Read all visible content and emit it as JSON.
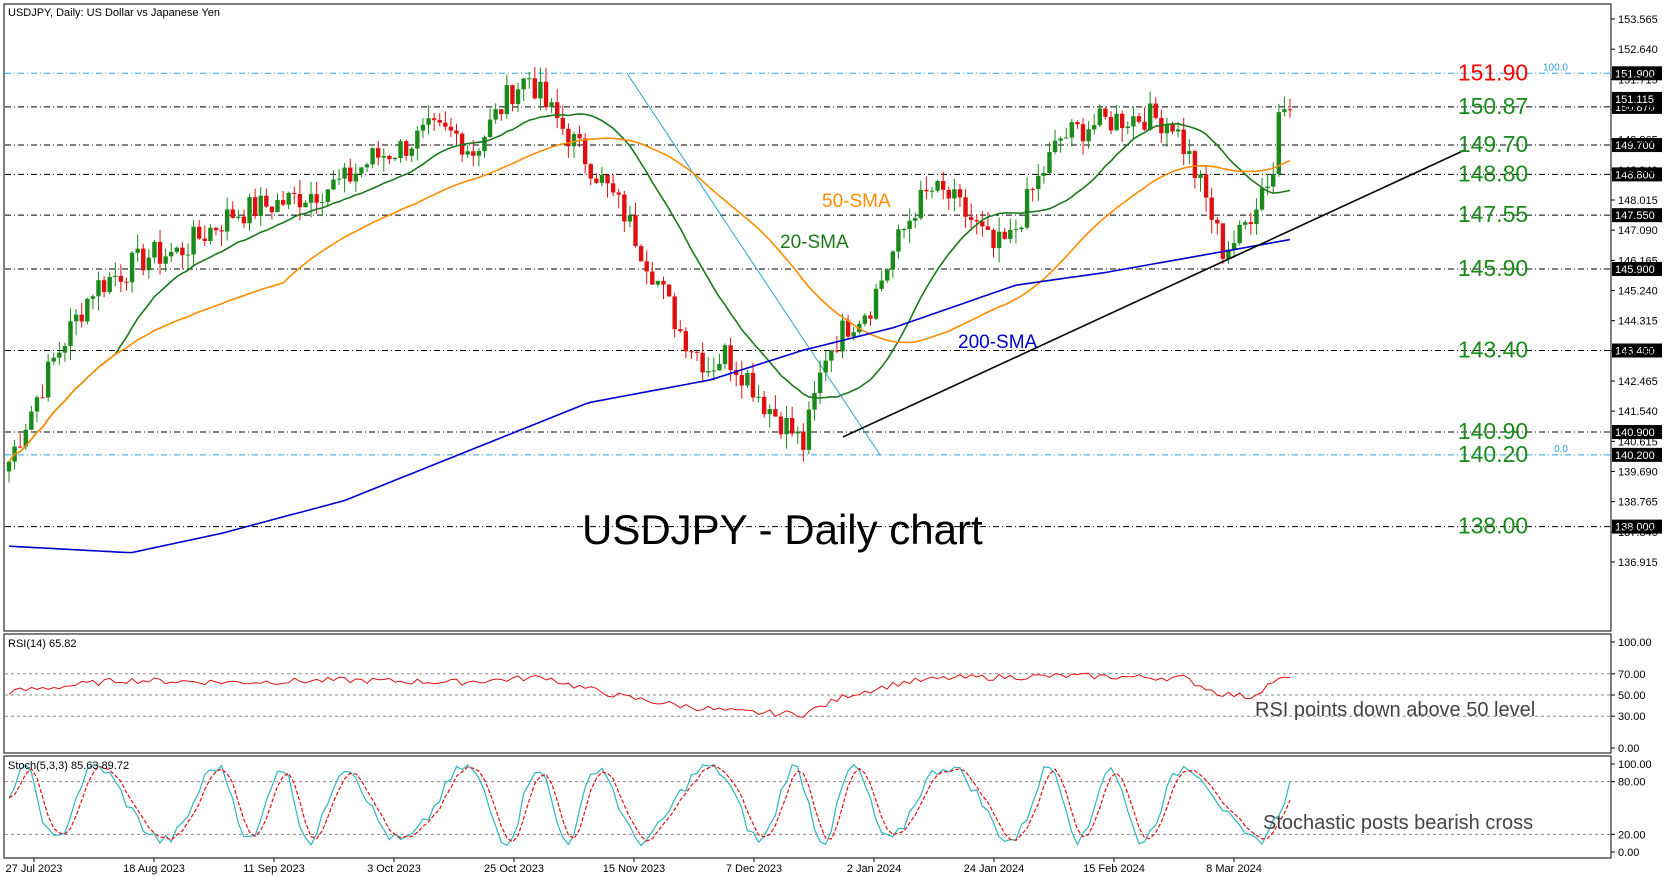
{
  "chart_data": {
    "type": "candlestick",
    "title": "USDJPY, Daily:  US Dollar vs Japanese Yen",
    "caption": "USDJPY - Daily chart",
    "price_axis": {
      "ticks": [
        "153.565",
        "152.640",
        "151.715",
        "150.790",
        "149.865",
        "148.940",
        "148.015",
        "147.090",
        "146.165",
        "145.240",
        "144.315",
        "143.390",
        "142.465",
        "141.540",
        "140.615",
        "139.690",
        "138.765",
        "137.840",
        "136.915"
      ],
      "ylim": [
        136.0,
        154.2
      ]
    },
    "date_labels": [
      "27 Jul 2023",
      "18 Aug 2023",
      "11 Sep 2023",
      "3 Oct 2023",
      "25 Oct 2023",
      "15 Nov 2023",
      "7 Dec 2023",
      "2 Jan 2024",
      "24 Jan 2024",
      "15 Feb 2024",
      "8 Mar 2024"
    ],
    "levels": [
      {
        "value": 151.9,
        "label": "151.90",
        "tag": "151.900",
        "color": "#ff0000"
      },
      {
        "value": 150.87,
        "label": "150.87",
        "tag": "150.870",
        "color": "#1a8a1a"
      },
      {
        "value": 149.7,
        "label": "149.70",
        "tag": "149.700",
        "color": "#1a8a1a"
      },
      {
        "value": 148.8,
        "label": "148.80",
        "tag": "148.800",
        "color": "#1a8a1a"
      },
      {
        "value": 147.55,
        "label": "147.55",
        "tag": "147.550",
        "color": "#1a8a1a"
      },
      {
        "value": 145.9,
        "label": "145.90",
        "tag": "145.900",
        "color": "#1a8a1a"
      },
      {
        "value": 143.4,
        "label": "143.40",
        "tag": "143.400",
        "color": "#1a8a1a"
      },
      {
        "value": 140.9,
        "label": "140.90",
        "tag": "140.900",
        "color": "#1a8a1a"
      },
      {
        "value": 140.2,
        "label": "140.20",
        "tag": "140.200",
        "color": "#1a8a1a"
      },
      {
        "value": 138.0,
        "label": "138.00",
        "tag": "138.000",
        "color": "#1a8a1a"
      }
    ],
    "current_price": "151.115",
    "fib": {
      "high_label": "100.0",
      "low_label": "0.0"
    },
    "series": [
      {
        "name": "20-SMA",
        "color": "#1a7a1a"
      },
      {
        "name": "50-SMA",
        "color": "#ff8c00"
      },
      {
        "name": "200-SMA",
        "color": "#0000cc"
      }
    ],
    "colors": {
      "up": "#1a8a1a",
      "down": "#e01010",
      "trendline": "#000000",
      "fib": "#2fa0d8"
    },
    "rsi": {
      "title": "RSI(14) 65.82",
      "ticks": [
        "100.00",
        "70.00",
        "50.00",
        "30.00",
        "0.00"
      ],
      "note": "RSI points down above 50 level",
      "color": "#e01010"
    },
    "stoch": {
      "title": "Stoch(5,3,3) 85.63 89.72",
      "ticks": [
        "100.00",
        "80.00",
        "20.00",
        "0.00"
      ],
      "note": "Stochastic posts bearish cross",
      "main_color": "#2fb5c0",
      "signal_color": "#e01010"
    }
  }
}
